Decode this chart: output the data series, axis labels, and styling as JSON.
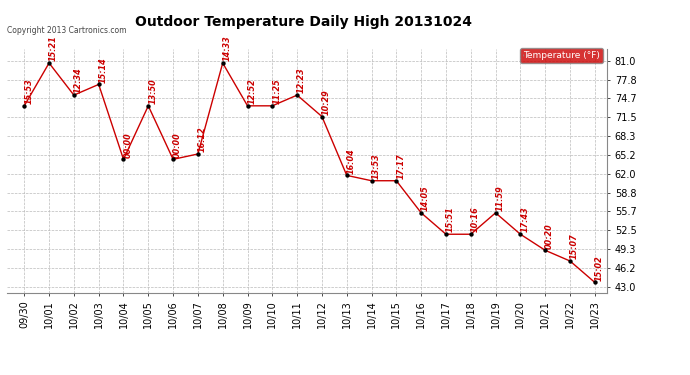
{
  "title": "Outdoor Temperature Daily High 20131024",
  "copyright": "Copyright 2013 Cartronics.com",
  "legend_label": "Temperature (°F)",
  "x_labels": [
    "09/30",
    "10/01",
    "10/02",
    "10/03",
    "10/04",
    "10/05",
    "10/06",
    "10/07",
    "10/08",
    "10/09",
    "10/10",
    "10/11",
    "10/12",
    "10/13",
    "10/14",
    "10/15",
    "10/16",
    "10/17",
    "10/18",
    "10/19",
    "10/20",
    "10/21",
    "10/22",
    "10/23"
  ],
  "y_values": [
    73.4,
    80.6,
    75.2,
    77.0,
    64.4,
    73.4,
    64.4,
    65.3,
    80.6,
    73.4,
    73.4,
    75.2,
    71.6,
    61.7,
    60.8,
    60.8,
    55.4,
    51.8,
    51.8,
    55.4,
    51.8,
    49.1,
    47.3,
    43.7
  ],
  "time_labels": [
    "15:53",
    "15:21",
    "12:34",
    "15:14",
    "00:00",
    "13:50",
    "00:00",
    "16:12",
    "14:33",
    "12:52",
    "11:25",
    "12:23",
    "10:29",
    "16:04",
    "13:53",
    "17:17",
    "14:05",
    "15:51",
    "10:16",
    "11:59",
    "17:43",
    "00:20",
    "15:07",
    "15:02"
  ],
  "y_ticks": [
    43.0,
    46.2,
    49.3,
    52.5,
    55.7,
    58.8,
    62.0,
    65.2,
    68.3,
    71.5,
    74.7,
    77.8,
    81.0
  ],
  "ylim": [
    42.0,
    83.0
  ],
  "xlim": [
    -0.7,
    23.5
  ],
  "line_color": "#cc0000",
  "marker_color": "#000000",
  "annotation_color": "#cc0000",
  "bg_color": "#ffffff",
  "grid_color": "#bbbbbb",
  "legend_bg": "#cc0000",
  "legend_text_color": "#ffffff",
  "title_fontsize": 10,
  "tick_fontsize": 7,
  "annot_fontsize": 5.8,
  "copyright_fontsize": 5.5
}
